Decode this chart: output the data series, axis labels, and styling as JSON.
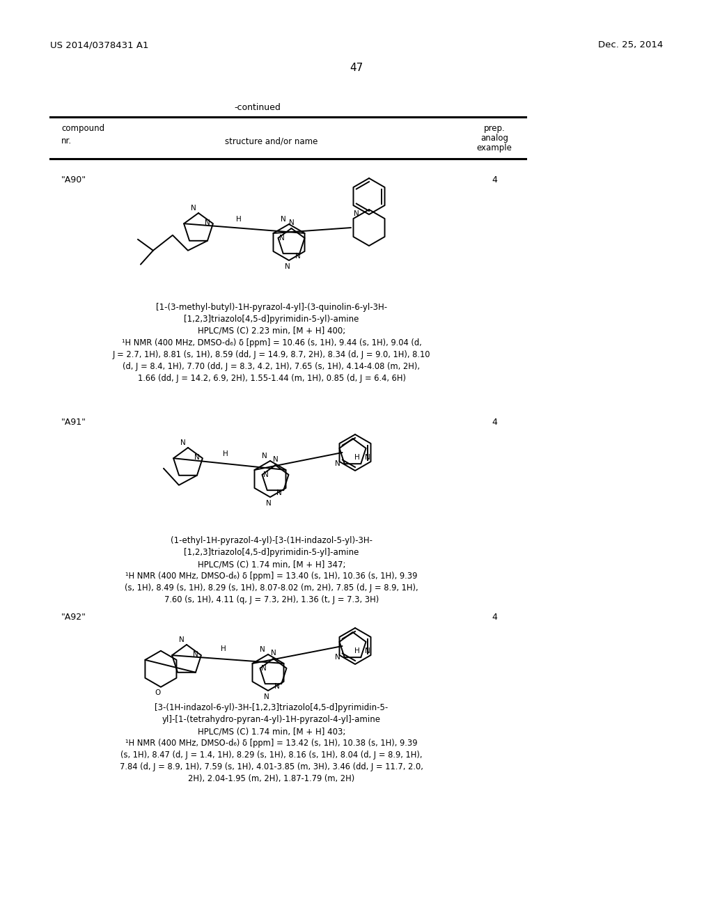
{
  "page_number": "47",
  "patent_number": "US 2014/0378431 A1",
  "patent_date": "Dec. 25, 2014",
  "continued_label": "-continued",
  "table_headers": {
    "col1_line1": "compound",
    "col1_line2": "nr.",
    "col2": "structure and/or name",
    "col3_line1": "prep.",
    "col3_line2": "analog",
    "col3_line3": "example"
  },
  "compounds": [
    {
      "id": "\"A90\"",
      "example": "4",
      "name_lines": [
        "[1-(3-methyl-butyl)-1H-pyrazol-4-yl]-(3-quinolin-6-yl-3H-",
        "[1,2,3]triazolo[4,5-d]pyrimidin-5-yl)-amine",
        "HPLC/MS (C) 2.23 min, [M + H] 400;",
        "¹H NMR (400 MHz, DMSO-d₆) δ [ppm] = 10.46 (s, 1H), 9.44 (s, 1H), 9.04 (d,",
        "J = 2.7, 1H), 8.81 (s, 1H), 8.59 (dd, J = 14.9, 8.7, 2H), 8.34 (d, J = 9.0, 1H), 8.10",
        "(d, J = 8.4, 1H), 7.70 (dd, J = 8.3, 4.2, 1H), 7.65 (s, 1H), 4.14-4.08 (m, 2H),",
        "1.66 (dd, J = 14.2, 6.9, 2H), 1.55-1.44 (m, 1H), 0.85 (d, J = 6.4, 6H)"
      ]
    },
    {
      "id": "\"A91\"",
      "example": "4",
      "name_lines": [
        "(1-ethyl-1H-pyrazol-4-yl)-[3-(1H-indazol-5-yl)-3H-",
        "[1,2,3]triazolo[4,5-d]pyrimidin-5-yl]-amine",
        "HPLC/MS (C) 1.74 min, [M + H] 347;",
        "¹H NMR (400 MHz, DMSO-d₆) δ [ppm] = 13.40 (s, 1H), 10.36 (s, 1H), 9.39",
        "(s, 1H), 8.49 (s, 1H), 8.29 (s, 1H), 8.07-8.02 (m, 2H), 7.85 (d, J = 8.9, 1H),",
        "7.60 (s, 1H), 4.11 (q, J = 7.3, 2H), 1.36 (t, J = 7.3, 3H)"
      ]
    },
    {
      "id": "\"A92\"",
      "example": "4",
      "name_lines": [
        "[3-(1H-indazol-6-yl)-3H-[1,2,3]triazolo[4,5-d]pyrimidin-5-",
        "yl]-[1-(tetrahydro-pyran-4-yl)-1H-pyrazol-4-yl]-amine",
        "HPLC/MS (C) 1.74 min, [M + H] 403;",
        "¹H NMR (400 MHz, DMSO-d₆) δ [ppm] = 13.42 (s, 1H), 10.38 (s, 1H), 9.39",
        "(s, 1H), 8.47 (d, J = 1.4, 1H), 8.29 (s, 1H), 8.16 (s, 1H), 8.04 (d, J = 8.9, 1H),",
        "7.84 (d, J = 8.9, 1H), 7.59 (s, 1H), 4.01-3.85 (m, 3H), 3.46 (dd, J = 11.7, 2.0,",
        "2H), 2.04-1.95 (m, 2H), 1.87-1.79 (m, 2H)"
      ]
    }
  ],
  "bg_color": "#ffffff",
  "text_color": "#000000"
}
